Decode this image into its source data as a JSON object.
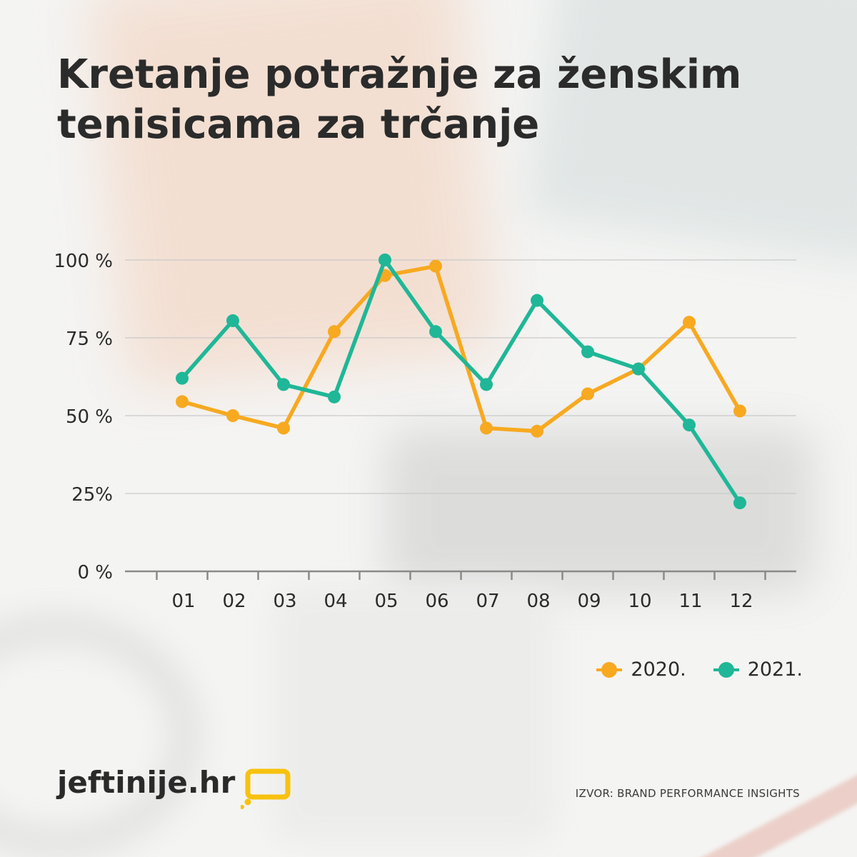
{
  "title": "Kretanje potražnje za ženskim tenisicama za trčanje",
  "chart_data": {
    "type": "line",
    "title": "Kretanje potražnje za ženskim tenisicama za trčanje",
    "categories": [
      "01",
      "02",
      "03",
      "04",
      "05",
      "06",
      "07",
      "08",
      "09",
      "10",
      "11",
      "12"
    ],
    "y_tick_labels": [
      "0 %",
      "25%",
      "50 %",
      "75 %",
      "100 %"
    ],
    "y_tick_values": [
      0,
      25,
      50,
      75,
      100
    ],
    "ylim": [
      0,
      100
    ],
    "grid": true,
    "legend_position": "bottom-right",
    "series": [
      {
        "name": "2020.",
        "color": "#f7a920",
        "values": [
          54.5,
          50,
          46,
          77,
          95,
          98,
          46,
          45,
          57,
          65,
          80,
          51.5
        ]
      },
      {
        "name": "2021.",
        "color": "#1fb797",
        "values": [
          62,
          80.5,
          60,
          56,
          100,
          77,
          60,
          87,
          70.5,
          65,
          47,
          22
        ]
      }
    ]
  },
  "legend": {
    "items": [
      {
        "label": "2020.",
        "color": "#f7a920"
      },
      {
        "label": "2021.",
        "color": "#1fb797"
      }
    ]
  },
  "footer": {
    "logo_text": "jeftinije.hr",
    "logo_color": "#f7c20e",
    "source": "IZVOR: BRAND PERFORMANCE INSIGHTS"
  }
}
